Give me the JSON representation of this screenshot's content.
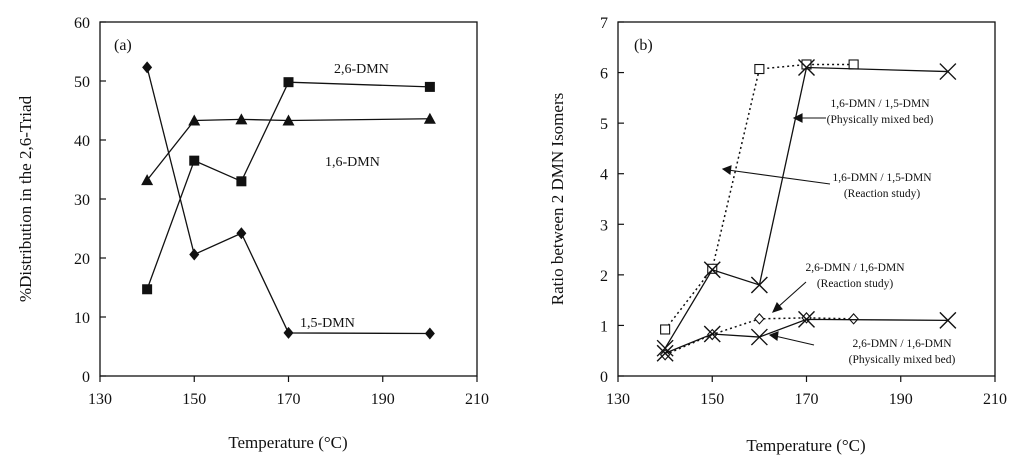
{
  "chart_data": [
    {
      "type": "line",
      "panel_label": "(a)",
      "xlabel": "Temperature (°C)",
      "ylabel": "%Distribution in the 2,6-Triad",
      "xlim": [
        130,
        210
      ],
      "ylim": [
        0,
        60
      ],
      "x_ticks": [
        "130",
        "150",
        "170",
        "190",
        "210"
      ],
      "y_ticks": [
        "0",
        "10",
        "20",
        "30",
        "40",
        "50",
        "60"
      ],
      "grid": false,
      "series": [
        {
          "name": "2,6-DMN",
          "marker": "square",
          "x": [
            140,
            150,
            160,
            170,
            200
          ],
          "y": [
            14.7,
            36.5,
            33,
            49.8,
            49
          ]
        },
        {
          "name": "1,6-DMN",
          "marker": "triangle",
          "x": [
            140,
            150,
            160,
            170,
            200
          ],
          "y": [
            33.2,
            43.3,
            43.5,
            43.3,
            43.6
          ]
        },
        {
          "name": "1,5-DMN",
          "marker": "diamond",
          "x": [
            140,
            150,
            160,
            170,
            200
          ],
          "y": [
            52.3,
            20.6,
            24.2,
            7.3,
            7.2
          ]
        }
      ]
    },
    {
      "type": "line",
      "panel_label": "(b)",
      "xlabel": "Temperature (°C)",
      "ylabel": "Ratio between 2 DMN Isomers",
      "xlim": [
        130,
        210
      ],
      "ylim": [
        0,
        7
      ],
      "x_ticks": [
        "130",
        "150",
        "170",
        "190",
        "210"
      ],
      "y_ticks": [
        "0",
        "1",
        "2",
        "3",
        "4",
        "5",
        "6",
        "7"
      ],
      "grid": false,
      "series": [
        {
          "name": "1,6-DMN / 1,5-DMN (Reaction study)",
          "marker": "open-square",
          "style": "dotted",
          "x": [
            140,
            150,
            160,
            170,
            180
          ],
          "y": [
            0.92,
            2.12,
            6.07,
            6.16,
            6.16
          ]
        },
        {
          "name": "1,6-DMN / 1,5-DMN (Physically mixed bed)",
          "marker": "cross",
          "style": "solid",
          "x": [
            140,
            150,
            160,
            170,
            200
          ],
          "y": [
            0.55,
            2.1,
            1.8,
            6.1,
            6.02
          ]
        },
        {
          "name": "2,6-DMN / 1,6-DMN (Reaction study)",
          "marker": "open-diamond",
          "style": "dotted",
          "x": [
            140,
            150,
            160,
            170,
            180
          ],
          "y": [
            0.42,
            0.82,
            1.13,
            1.15,
            1.13
          ]
        },
        {
          "name": "2,6-DMN / 1,6-DMN (Physically mixed bed)",
          "marker": "cross",
          "style": "solid",
          "x": [
            140,
            150,
            160,
            170,
            200
          ],
          "y": [
            0.45,
            0.83,
            0.77,
            1.12,
            1.1
          ]
        }
      ],
      "annotations": [
        {
          "line1": "1,6-DMN / 1,5-DMN",
          "line2": "(Physically mixed bed)"
        },
        {
          "line1": "1,6-DMN / 1,5-DMN",
          "line2": "(Reaction study)"
        },
        {
          "line1": "2,6-DMN / 1,6-DMN",
          "line2": "(Reaction study)"
        },
        {
          "line1": "2,6-DMN / 1,6-DMN",
          "line2": "(Physically mixed bed)"
        }
      ]
    }
  ]
}
